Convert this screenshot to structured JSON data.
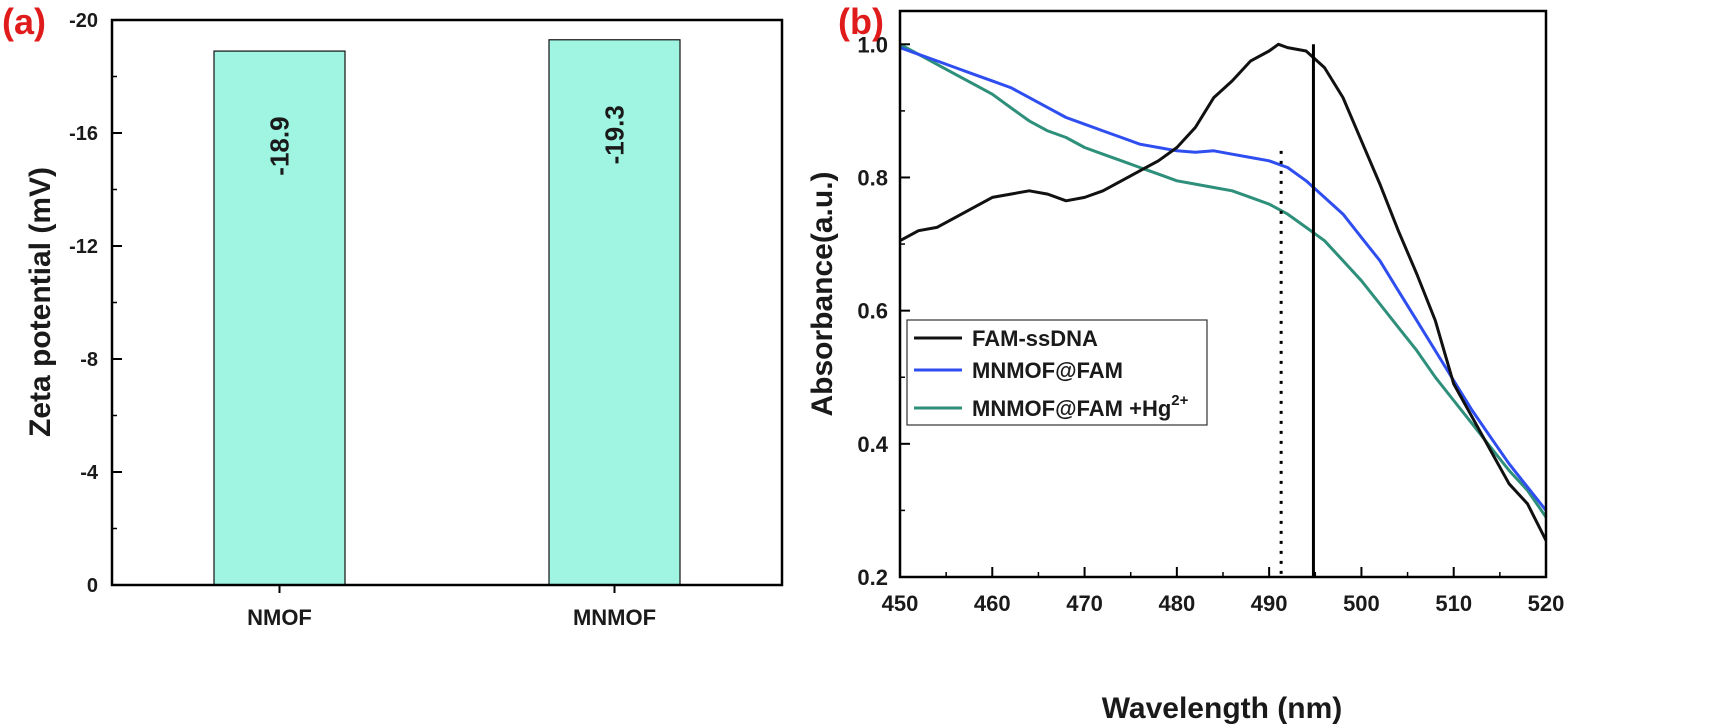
{
  "chart_data": [
    {
      "panel_label": "(a)",
      "type": "bar",
      "categories": [
        "NMOF",
        "MNMOF"
      ],
      "values": [
        -18.9,
        -19.3
      ],
      "value_labels": [
        "-18.9",
        "-19.3"
      ],
      "ylabel": "Zeta potential (mV)",
      "xlabel": "",
      "ylim": [
        0,
        -20
      ],
      "y_ticks": [
        "0",
        "-4",
        "-8",
        "-12",
        "-16",
        "-20"
      ],
      "y_tick_values": [
        0,
        -4,
        -8,
        -12,
        -16,
        -20
      ],
      "bar_color": "#9ff5e2",
      "grid": false
    },
    {
      "panel_label": "(b)",
      "type": "line",
      "xlabel": "Wavelength (nm)",
      "ylabel": "Absorbance(a.u.)",
      "xlim": [
        450,
        520
      ],
      "ylim": [
        0.2,
        1.05
      ],
      "x_ticks": [
        "450",
        "460",
        "470",
        "480",
        "490",
        "500",
        "510",
        "520"
      ],
      "x_tick_values": [
        450,
        460,
        470,
        480,
        490,
        500,
        510,
        520
      ],
      "y_ticks": [
        "0.2",
        "0.4",
        "0.6",
        "0.8",
        "1.0"
      ],
      "y_tick_values": [
        0.2,
        0.4,
        0.6,
        0.8,
        1.0
      ],
      "legend_position": "middle-left",
      "grid": false,
      "markers": [
        {
          "x": 494.8,
          "style": "solid",
          "y_top": 1.0
        },
        {
          "x": 491.3,
          "style": "dotted",
          "y_top": 0.84
        }
      ],
      "series": [
        {
          "name": "FAM-ssDNA",
          "color": "#111111",
          "x": [
            450,
            452,
            454,
            456,
            458,
            460,
            462,
            464,
            466,
            468,
            470,
            472,
            474,
            476,
            478,
            480,
            482,
            484,
            486,
            488,
            490,
            491,
            492,
            494,
            496,
            498,
            500,
            502,
            504,
            506,
            508,
            510,
            512,
            514,
            516,
            518,
            520
          ],
          "y": [
            0.705,
            0.72,
            0.725,
            0.74,
            0.755,
            0.77,
            0.775,
            0.78,
            0.775,
            0.765,
            0.77,
            0.78,
            0.795,
            0.81,
            0.825,
            0.845,
            0.875,
            0.92,
            0.945,
            0.975,
            0.99,
            1.0,
            0.995,
            0.99,
            0.965,
            0.92,
            0.855,
            0.79,
            0.72,
            0.655,
            0.585,
            0.49,
            0.44,
            0.39,
            0.34,
            0.31,
            0.255
          ]
        },
        {
          "name": "MNMOF@FAM",
          "color": "#2f4ef0",
          "x": [
            450,
            452,
            454,
            456,
            458,
            460,
            462,
            464,
            466,
            468,
            470,
            472,
            474,
            476,
            478,
            480,
            482,
            484,
            486,
            488,
            490,
            492,
            494,
            496,
            498,
            500,
            502,
            504,
            506,
            508,
            510,
            512,
            514,
            516,
            518,
            520
          ],
          "y": [
            0.995,
            0.985,
            0.975,
            0.965,
            0.955,
            0.945,
            0.935,
            0.92,
            0.905,
            0.89,
            0.88,
            0.87,
            0.86,
            0.85,
            0.845,
            0.84,
            0.838,
            0.84,
            0.835,
            0.83,
            0.825,
            0.815,
            0.795,
            0.77,
            0.745,
            0.71,
            0.675,
            0.63,
            0.585,
            0.54,
            0.495,
            0.45,
            0.41,
            0.37,
            0.335,
            0.3
          ]
        },
        {
          "name": "MNMOF@FAM +Hg",
          "name_sup": "2+",
          "color": "#2e8f7a",
          "x": [
            450,
            452,
            454,
            456,
            458,
            460,
            462,
            464,
            466,
            468,
            470,
            472,
            474,
            476,
            478,
            480,
            482,
            484,
            486,
            488,
            490,
            492,
            494,
            496,
            498,
            500,
            502,
            504,
            506,
            508,
            510,
            512,
            514,
            516,
            518,
            520
          ],
          "y": [
            1.0,
            0.985,
            0.97,
            0.955,
            0.94,
            0.925,
            0.905,
            0.885,
            0.87,
            0.86,
            0.845,
            0.835,
            0.825,
            0.815,
            0.805,
            0.795,
            0.79,
            0.785,
            0.78,
            0.77,
            0.76,
            0.745,
            0.725,
            0.705,
            0.675,
            0.645,
            0.61,
            0.575,
            0.54,
            0.5,
            0.465,
            0.43,
            0.395,
            0.36,
            0.33,
            0.29
          ]
        }
      ]
    }
  ]
}
